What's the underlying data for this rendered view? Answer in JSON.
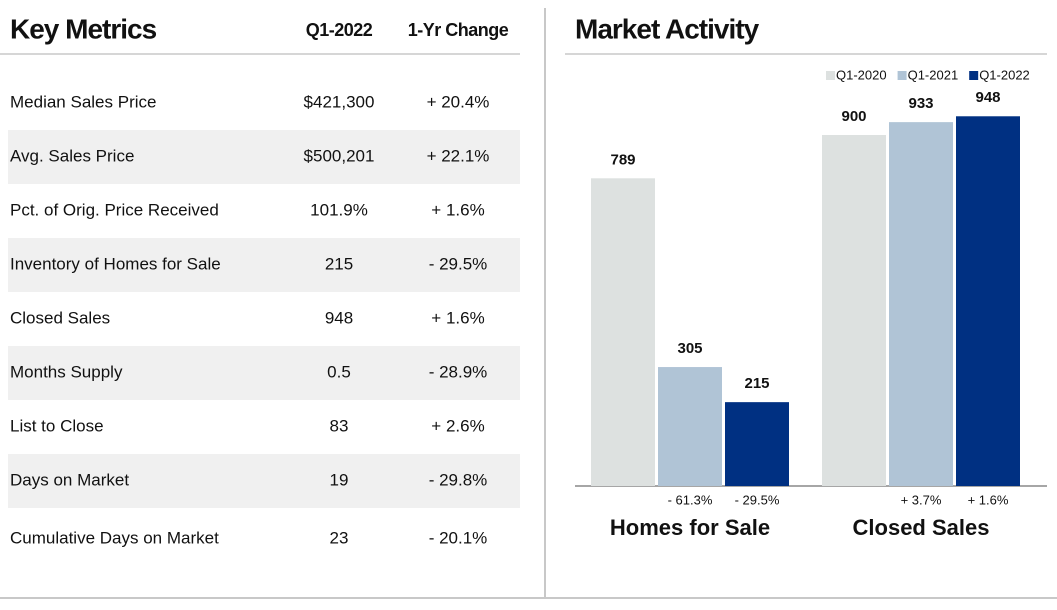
{
  "table": {
    "title": "Key Metrics",
    "columns": [
      "Q1-2022",
      "1-Yr Change"
    ],
    "rows": [
      [
        "Median Sales Price",
        "$421,300",
        "+ 20.4%"
      ],
      [
        "Avg. Sales Price",
        "$500,201",
        "+ 22.1%"
      ],
      [
        "Pct. of Orig. Price Received",
        "101.9%",
        "+ 1.6%"
      ],
      [
        "Inventory of Homes for Sale",
        "215",
        "- 29.5%"
      ],
      [
        "Closed Sales",
        "948",
        "+ 1.6%"
      ],
      [
        "Months Supply",
        "0.5",
        "- 28.9%"
      ],
      [
        "List to Close",
        "83",
        "+ 2.6%"
      ],
      [
        "Days on Market",
        "19",
        "- 29.8%"
      ],
      [
        "Cumulative Days on Market",
        "23",
        "- 20.1%"
      ]
    ]
  },
  "chart_data": {
    "type": "bar",
    "title": "Market Activity",
    "categories": [
      "Homes for Sale",
      "Closed Sales"
    ],
    "series": [
      {
        "name": "Q1-2020",
        "color": "#dde1e0",
        "values": [
          789,
          900
        ]
      },
      {
        "name": "Q1-2021",
        "color": "#b0c4d6",
        "values": [
          305,
          933
        ],
        "change_labels": [
          "- 61.3%",
          "+ 3.7%"
        ]
      },
      {
        "name": "Q1-2022",
        "color": "#003082",
        "values": [
          215,
          948
        ],
        "change_labels": [
          "- 29.5%",
          "+ 1.6%"
        ]
      }
    ],
    "legend": "top-right"
  }
}
